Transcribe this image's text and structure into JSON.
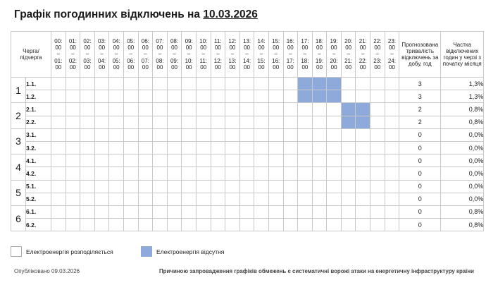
{
  "title": {
    "prefix": "Графік погодинних відключень на",
    "date": "10.03.2026"
  },
  "header": {
    "queue": "Черга/ підчерга",
    "duration": "Прогнозована тривалість відключень за добу, год",
    "share": "Частка відключених годин у черзі з початку місяця",
    "hours": [
      {
        "from": "00:",
        "from2": "00",
        "to": "01:",
        "to2": "00"
      },
      {
        "from": "01:",
        "from2": "00",
        "to": "02:",
        "to2": "00"
      },
      {
        "from": "02:",
        "from2": "00",
        "to": "03:",
        "to2": "00"
      },
      {
        "from": "03:",
        "from2": "00",
        "to": "04:",
        "to2": "00"
      },
      {
        "from": "04:",
        "from2": "00",
        "to": "05:",
        "to2": "00"
      },
      {
        "from": "05:",
        "from2": "00",
        "to": "06:",
        "to2": "00"
      },
      {
        "from": "06:",
        "from2": "00",
        "to": "07:",
        "to2": "00"
      },
      {
        "from": "07:",
        "from2": "00",
        "to": "08:",
        "to2": "00"
      },
      {
        "from": "08:",
        "from2": "00",
        "to": "09:",
        "to2": "00"
      },
      {
        "from": "09:",
        "from2": "00",
        "to": "10:",
        "to2": "00"
      },
      {
        "from": "10:",
        "from2": "00",
        "to": "11:",
        "to2": "00"
      },
      {
        "from": "11:",
        "from2": "00",
        "to": "12:",
        "to2": "00"
      },
      {
        "from": "12:",
        "from2": "00",
        "to": "13:",
        "to2": "00"
      },
      {
        "from": "13:",
        "from2": "00",
        "to": "14:",
        "to2": "00"
      },
      {
        "from": "14:",
        "from2": "00",
        "to": "15:",
        "to2": "00"
      },
      {
        "from": "15:",
        "from2": "00",
        "to": "16:",
        "to2": "00"
      },
      {
        "from": "16:",
        "from2": "00",
        "to": "17:",
        "to2": "00"
      },
      {
        "from": "17:",
        "from2": "00",
        "to": "18:",
        "to2": "00"
      },
      {
        "from": "18:",
        "from2": "00",
        "to": "19:",
        "to2": "00"
      },
      {
        "from": "19:",
        "from2": "00",
        "to": "20:",
        "to2": "00"
      },
      {
        "from": "20:",
        "from2": "00",
        "to": "21:",
        "to2": "00"
      },
      {
        "from": "21:",
        "from2": "00",
        "to": "22:",
        "to2": "00"
      },
      {
        "from": "22:",
        "from2": "00",
        "to": "23:",
        "to2": "00"
      },
      {
        "from": "23:",
        "from2": "00",
        "to": "24:",
        "to2": "00"
      }
    ],
    "dash": "–"
  },
  "groups": [
    {
      "label": "1",
      "subs": [
        {
          "label": "1.1.",
          "off": [
            17,
            18,
            19
          ],
          "duration": "3",
          "share": "1,3%"
        },
        {
          "label": "1.2.",
          "off": [
            17,
            18,
            19
          ],
          "duration": "3",
          "share": "1,3%"
        }
      ]
    },
    {
      "label": "2",
      "subs": [
        {
          "label": "2.1.",
          "off": [
            20,
            21
          ],
          "duration": "2",
          "share": "0,8%"
        },
        {
          "label": "2.2.",
          "off": [
            20,
            21
          ],
          "duration": "2",
          "share": "0,8%"
        }
      ]
    },
    {
      "label": "3",
      "subs": [
        {
          "label": "3.1.",
          "off": [],
          "duration": "0",
          "share": "0,0%"
        },
        {
          "label": "3.2.",
          "off": [],
          "duration": "0",
          "share": "0,0%"
        }
      ]
    },
    {
      "label": "4",
      "subs": [
        {
          "label": "4.1.",
          "off": [],
          "duration": "0",
          "share": "0,0%"
        },
        {
          "label": "4.2.",
          "off": [],
          "duration": "0",
          "share": "0,0%"
        }
      ]
    },
    {
      "label": "5",
      "subs": [
        {
          "label": "5.1.",
          "off": [],
          "duration": "0",
          "share": "0,0%"
        },
        {
          "label": "5.2.",
          "off": [],
          "duration": "0",
          "share": "0,0%"
        }
      ]
    },
    {
      "label": "6",
      "subs": [
        {
          "label": "6.1.",
          "off": [],
          "duration": "0",
          "share": "0,8%"
        },
        {
          "label": "6.2.",
          "off": [],
          "duration": "0",
          "share": "0,8%"
        }
      ]
    }
  ],
  "legend": {
    "available": "Електроенергія розподіляється",
    "absent": "Електроенергія відсутня"
  },
  "footer": {
    "published": "Опубліковано 09.03.2026",
    "note": "Причиною запровадження графіків обмежень є систематичні ворожі атаки на енергетичну інфраструктуру країни"
  },
  "colors": {
    "outage": "#8eaadb",
    "grid": "#c9c9c9"
  }
}
